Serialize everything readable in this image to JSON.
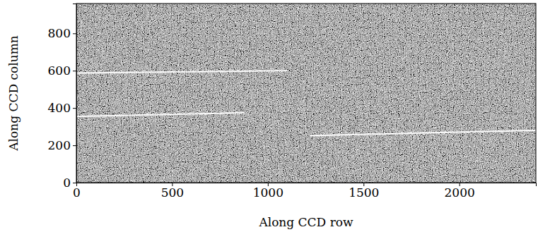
{
  "chart_data": {
    "type": "line",
    "x_label": "Along CCD row",
    "y_label": "Along CCD column",
    "xlim": [
      0,
      2400
    ],
    "ylim": [
      0,
      960
    ],
    "xticks": [
      0,
      500,
      1000,
      1500,
      2000
    ],
    "yticks": [
      0,
      200,
      400,
      600,
      800
    ],
    "grid": false,
    "series": [
      {
        "color": "#ffffff",
        "x": [
          0,
          800,
          1100
        ],
        "values": [
          587,
          597,
          600
        ]
      },
      {
        "color": "#ffffff",
        "x": [
          0,
          880
        ],
        "values": [
          355,
          375
        ]
      },
      {
        "color": "#ffffff",
        "x": [
          1220,
          2400
        ],
        "values": [
          252,
          280
        ]
      }
    ]
  }
}
